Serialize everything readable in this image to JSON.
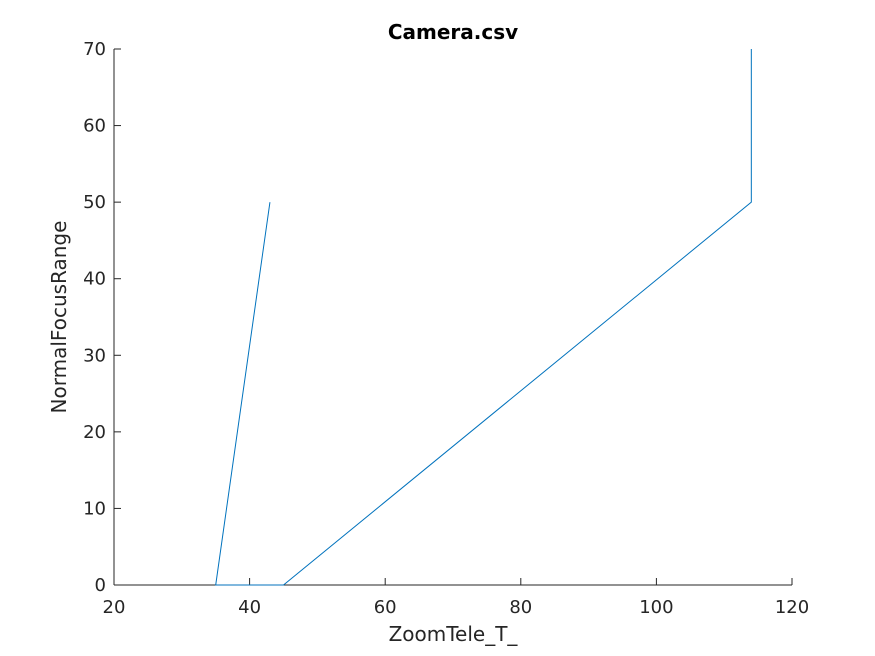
{
  "chart_data": {
    "type": "line",
    "title": "Camera.csv",
    "xlabel": "ZoomTele_T_",
    "ylabel": "NormalFocusRange",
    "xlim": [
      20,
      120
    ],
    "ylim": [
      0,
      70
    ],
    "xticks": [
      20,
      40,
      60,
      80,
      100,
      120
    ],
    "yticks": [
      0,
      10,
      20,
      30,
      40,
      50,
      60,
      70
    ],
    "grid": false,
    "series": [
      {
        "color": "#0072BD",
        "points": [
          [
            43,
            50
          ],
          [
            35,
            0
          ],
          [
            45,
            0
          ],
          [
            114,
            50
          ],
          [
            114,
            70
          ]
        ]
      }
    ]
  }
}
